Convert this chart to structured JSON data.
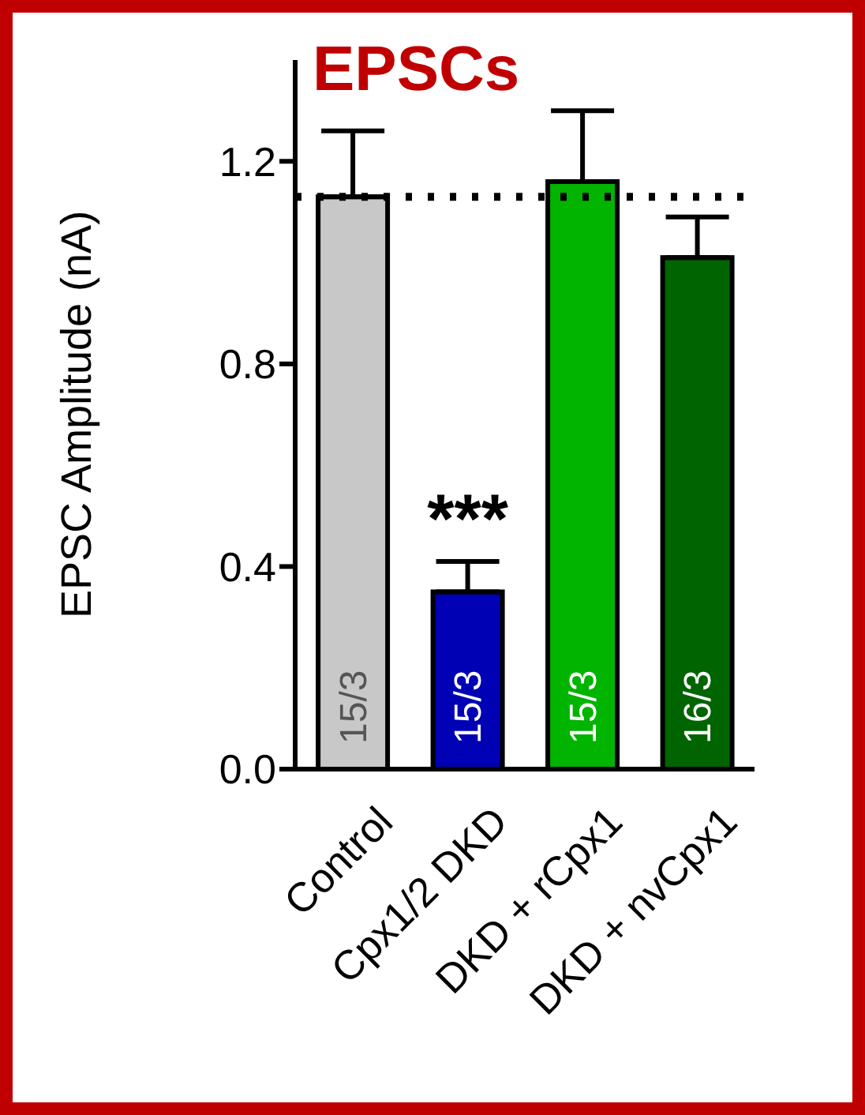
{
  "chart_data": {
    "type": "bar",
    "title": "EPSCs",
    "ylabel": "EPSC Amplitude (nA)",
    "categories": [
      "Control",
      "Cpx1/2 DKD",
      "DKD + rCpx1",
      "DKD + nvCpx1"
    ],
    "values": [
      1.13,
      0.35,
      1.16,
      1.01
    ],
    "colors": [
      "#c8c8c8",
      "#0000b4",
      "#00b400",
      "#006400"
    ],
    "errors": [
      [
        1.13,
        1.26
      ],
      [
        0.35,
        0.41
      ],
      [
        1.16,
        1.3
      ],
      [
        1.01,
        1.09
      ]
    ],
    "ylim": [
      0,
      1.4
    ],
    "yticks": [
      {
        "value": 0,
        "label": "0.0"
      },
      {
        "value": 0.4,
        "label": "0.4"
      },
      {
        "value": 0.8,
        "label": "0.8"
      },
      {
        "value": 1.2,
        "label": "1.2"
      }
    ],
    "ref_lines": [
      {
        "axis": "y",
        "value": 1.13,
        "color": "#000000",
        "line_style": "dotted"
      }
    ],
    "annotations": [
      {
        "text": "15/3",
        "x": "Control",
        "y": 0.05
      },
      {
        "text": "15/3",
        "x": "Cpx1/2 DKD",
        "y": 0.05
      },
      {
        "text": "15/3",
        "x": "DKD + rCpx1",
        "y": 0.05
      },
      {
        "text": "16/3",
        "x": "DKD + nvCpx1",
        "y": 0.05
      },
      "***"
    ],
    "grid": false,
    "legend": false
  }
}
